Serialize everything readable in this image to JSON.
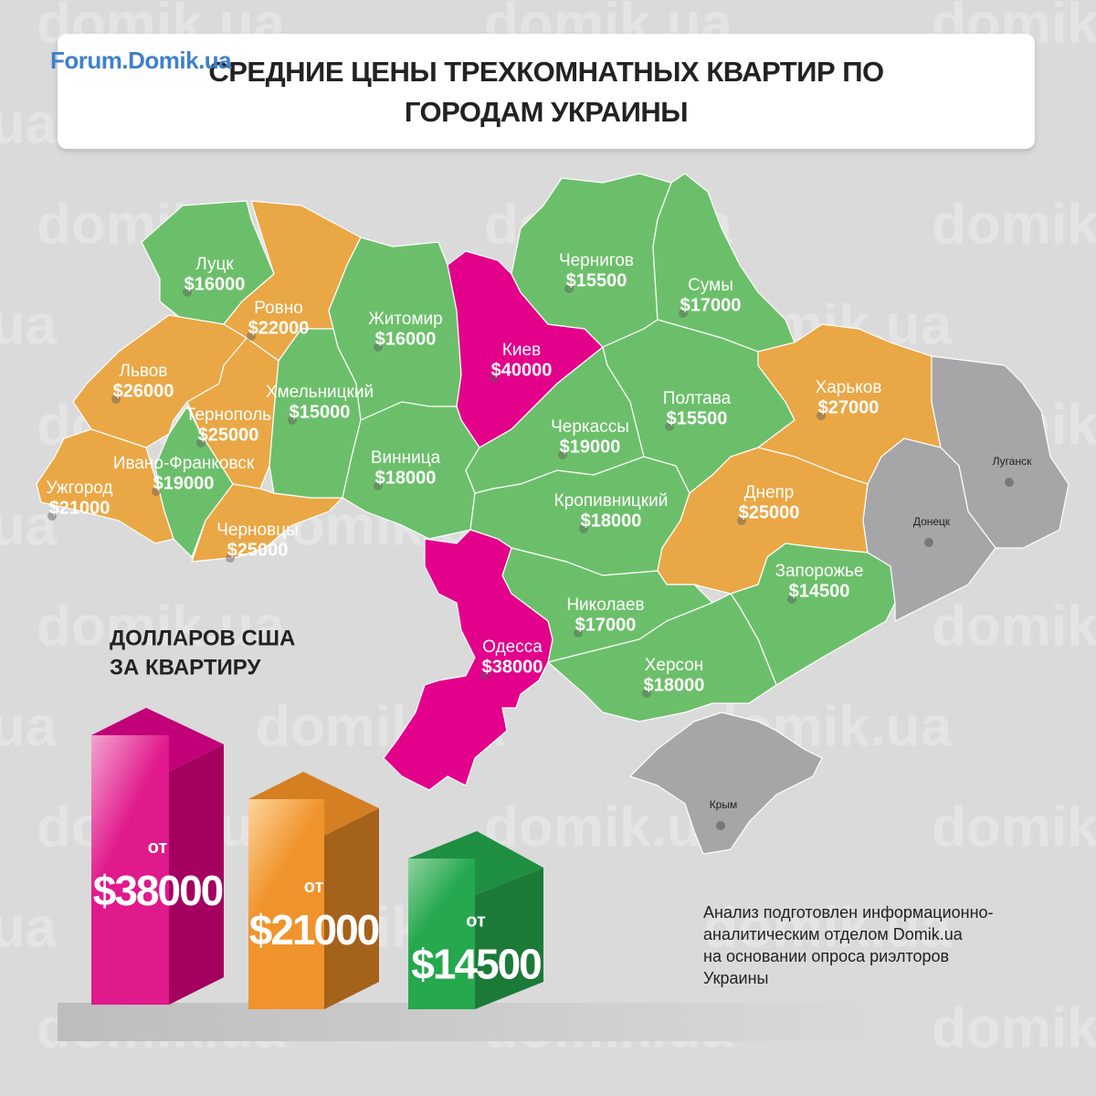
{
  "header": {
    "logo": "Forum.Domik.ua",
    "title": "СРЕДНИЕ ЦЕНЫ ТРЕХКОМНАТНЫХ КВАРТИР ПО ГОРОДАМ УКРАИНЫ"
  },
  "watermark": "domik.ua",
  "regions": [
    {
      "city": "Луцк",
      "price": "$16000"
    },
    {
      "city": "Ровно",
      "price": "$22000"
    },
    {
      "city": "Львов",
      "price": "$26000"
    },
    {
      "city": "Тернополь",
      "price": "$25000"
    },
    {
      "city": "Ивано-Франковск",
      "price": "$19000"
    },
    {
      "city": "Ужгород",
      "price": "$21000"
    },
    {
      "city": "Черновцы",
      "price": "$25000"
    },
    {
      "city": "Хмельницкий",
      "price": "$15000"
    },
    {
      "city": "Житомир",
      "price": "$16000"
    },
    {
      "city": "Киев",
      "price": "$40000"
    },
    {
      "city": "Винница",
      "price": "$18000"
    },
    {
      "city": "Черкассы",
      "price": "$19000"
    },
    {
      "city": "Кропивницкий",
      "price": "$18000"
    },
    {
      "city": "Чернигов",
      "price": "$15500"
    },
    {
      "city": "Сумы",
      "price": "$17000"
    },
    {
      "city": "Полтава",
      "price": "$15500"
    },
    {
      "city": "Харьков",
      "price": "$27000"
    },
    {
      "city": "Днепр",
      "price": "$25000"
    },
    {
      "city": "Запорожье",
      "price": "$14500"
    },
    {
      "city": "Николаев",
      "price": "$17000"
    },
    {
      "city": "Херсон",
      "price": "$18000"
    },
    {
      "city": "Одесса",
      "price": "$38000"
    }
  ],
  "unpriced": [
    "Луганск",
    "Донецк",
    "Крым"
  ],
  "legend": {
    "title": [
      "ДОЛЛАРОВ США",
      "ЗА КВАРТИРУ"
    ],
    "bars": [
      {
        "prefix": "от",
        "price": "$38000"
      },
      {
        "prefix": "от",
        "price": "$21000"
      },
      {
        "prefix": "от",
        "price": "$14500"
      }
    ]
  },
  "note": [
    "Анализ подготовлен информационно-",
    "аналитическим отделом Domik.ua",
    "на основании опроса риэлторов",
    "Украины"
  ]
}
